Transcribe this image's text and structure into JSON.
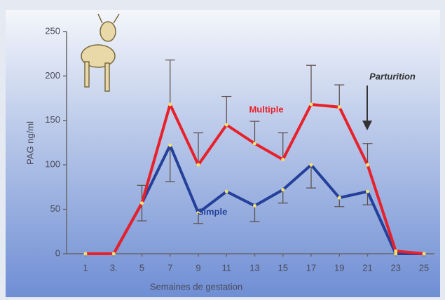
{
  "chart_data": {
    "type": "line",
    "x_label": "Semaines de gestation",
    "y_label": "PAG  ng/ml",
    "categories": [
      "1",
      "3.",
      "5",
      "7",
      "9",
      "11",
      "13",
      "15",
      "17",
      "19",
      "21",
      "23",
      "25"
    ],
    "ylim": [
      0,
      250
    ],
    "yticks": [
      0,
      50,
      100,
      150,
      200,
      250
    ],
    "series": [
      {
        "name": "Multiple",
        "color": "#e8202a",
        "error_side": "up",
        "values": [
          0,
          0,
          57,
          168,
          100,
          145,
          124,
          106,
          168,
          165,
          100,
          3,
          0
        ],
        "errors": [
          null,
          null,
          20,
          50,
          36,
          32,
          25,
          30,
          44,
          25,
          24,
          null,
          null
        ]
      },
      {
        "name": "Simple",
        "color": "#24409a",
        "error_side": "down",
        "values": [
          0,
          0,
          57,
          122,
          46,
          70,
          54,
          72,
          100,
          63,
          70,
          0,
          0
        ],
        "errors": [
          null,
          null,
          20,
          41,
          12,
          null,
          18,
          15,
          26,
          10,
          15,
          null,
          null
        ]
      }
    ],
    "annotation": "Parturition"
  }
}
